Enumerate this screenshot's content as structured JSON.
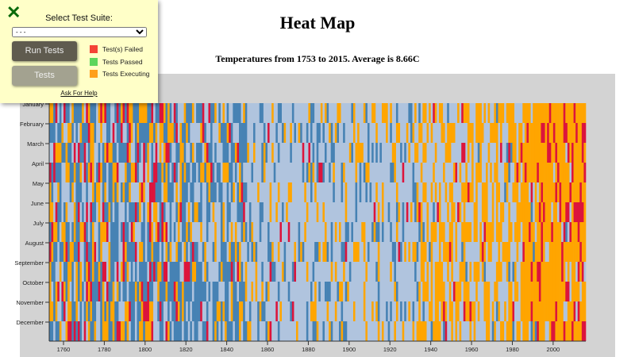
{
  "panel": {
    "select_label": "Select Test Suite:",
    "select_value": "- - -",
    "run_label": "Run Tests",
    "tests_label": "Tests",
    "help_label": "Ask For Help",
    "legend": [
      {
        "label": "Test(s) Failed",
        "color": "#f44336"
      },
      {
        "label": "Tests Passed",
        "color": "#5cd65c"
      },
      {
        "label": "Tests Executing",
        "color": "#ff9f1a"
      }
    ]
  },
  "chart_data": {
    "type": "heatmap",
    "title": "Heat Map",
    "subtitle": "Temperatures from 1753 to 2015. Average is 8.66C",
    "x_range": [
      1753,
      2015
    ],
    "x_ticks": [
      "1760",
      "1780",
      "1800",
      "1820",
      "1840",
      "1860",
      "1880",
      "1900",
      "1920",
      "1940",
      "1960",
      "1980",
      "2000"
    ],
    "y_categories": [
      "January",
      "February",
      "March",
      "April",
      "May",
      "June",
      "July",
      "August",
      "September",
      "October",
      "November",
      "December"
    ],
    "color_scale": [
      "#4682b4",
      "#b0c4de",
      "#ffa500",
      "#dc143c"
    ]
  }
}
